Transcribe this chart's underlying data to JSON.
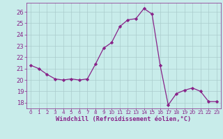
{
  "x": [
    0,
    1,
    2,
    3,
    4,
    5,
    6,
    7,
    8,
    9,
    10,
    11,
    12,
    13,
    14,
    15,
    16,
    17,
    18,
    19,
    20,
    21,
    22,
    23
  ],
  "y": [
    21.3,
    21.0,
    20.5,
    20.1,
    20.0,
    20.1,
    20.0,
    20.1,
    21.4,
    22.8,
    23.3,
    24.7,
    25.3,
    25.4,
    26.3,
    25.8,
    21.3,
    17.8,
    18.8,
    19.1,
    19.3,
    19.0,
    18.1,
    18.1
  ],
  "line_color": "#882288",
  "marker": "D",
  "marker_size": 2.2,
  "bg_color": "#c8ecea",
  "grid_color": "#aacccc",
  "xlabel": "Windchill (Refroidissement éolien,°C)",
  "tick_color": "#882288",
  "xlim": [
    -0.5,
    23.5
  ],
  "ylim": [
    17.5,
    26.8
  ],
  "yticks": [
    18,
    19,
    20,
    21,
    22,
    23,
    24,
    25,
    26
  ],
  "xticks": [
    0,
    1,
    2,
    3,
    4,
    5,
    6,
    7,
    8,
    9,
    10,
    11,
    12,
    13,
    14,
    15,
    16,
    17,
    18,
    19,
    20,
    21,
    22,
    23
  ],
  "xtick_fontsize": 5.2,
  "ytick_fontsize": 6.0,
  "xlabel_fontsize": 6.2
}
